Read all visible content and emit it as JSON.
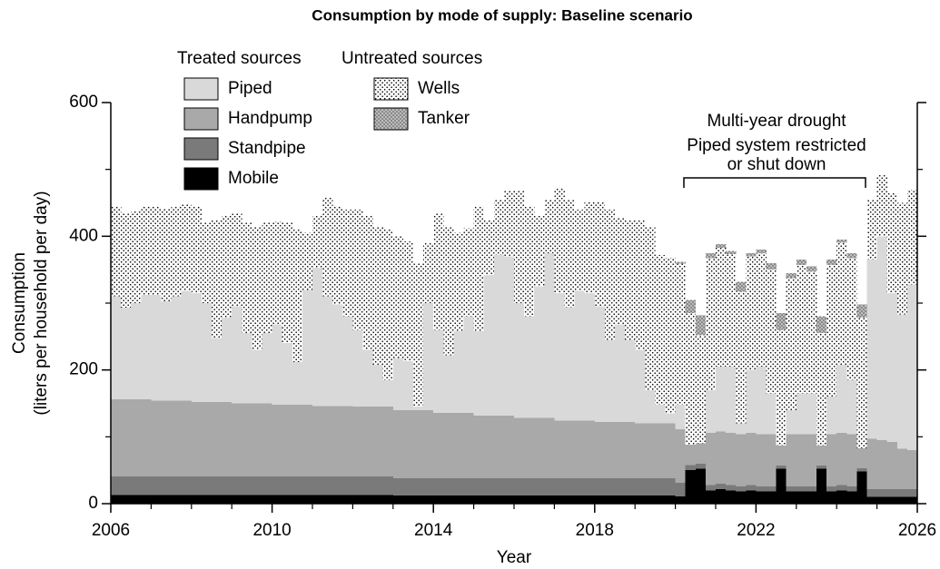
{
  "chart_data": {
    "type": "stacked-step-area",
    "title": "Consumption by mode of supply: Baseline scenario",
    "xlabel": "Year",
    "ylabel": [
      "Consumption",
      "(liters per household per day)"
    ],
    "legend_groups": [
      "Treated sources",
      "Untreated sources"
    ],
    "annotation": [
      "Multi-year drought",
      "Piped system restricted",
      "or shut down"
    ],
    "xlim": [
      2006,
      2026
    ],
    "xticks": [
      2006,
      2010,
      2014,
      2018,
      2022,
      2026
    ],
    "xticks_minor": [
      2007,
      2008,
      2009,
      2011,
      2012,
      2013,
      2015,
      2016,
      2017,
      2019,
      2020,
      2021,
      2023,
      2024,
      2025
    ],
    "ylim": [
      0,
      600
    ],
    "yticks": [
      0,
      200,
      400,
      600
    ],
    "yticks_minor": [
      100,
      300,
      500
    ],
    "x": [
      2006,
      2006.25,
      2006.5,
      2006.75,
      2007,
      2007.25,
      2007.5,
      2007.75,
      2008,
      2008.25,
      2008.5,
      2008.75,
      2009,
      2009.25,
      2009.5,
      2009.75,
      2010,
      2010.25,
      2010.5,
      2010.75,
      2011,
      2011.25,
      2011.5,
      2011.75,
      2012,
      2012.25,
      2012.5,
      2012.75,
      2013,
      2013.25,
      2013.5,
      2013.75,
      2014,
      2014.25,
      2014.5,
      2014.75,
      2015,
      2015.25,
      2015.5,
      2015.75,
      2016,
      2016.25,
      2016.5,
      2016.75,
      2017,
      2017.25,
      2017.5,
      2017.75,
      2018,
      2018.25,
      2018.5,
      2018.75,
      2019,
      2019.25,
      2019.5,
      2019.75,
      2020,
      2020.25,
      2020.5,
      2020.75,
      2021,
      2021.25,
      2021.5,
      2021.75,
      2022,
      2022.25,
      2022.5,
      2022.75,
      2023,
      2023.25,
      2023.5,
      2023.75,
      2024,
      2024.25,
      2024.5,
      2024.75,
      2025,
      2025.25,
      2025.5,
      2025.75
    ],
    "series": [
      {
        "name": "Mobile",
        "group": 0,
        "color": "#000000",
        "values": [
          13,
          13,
          13,
          13,
          13,
          13,
          13,
          13,
          13,
          13,
          13,
          13,
          13,
          13,
          13,
          13,
          13,
          13,
          13,
          13,
          13,
          13,
          13,
          13,
          13,
          13,
          13,
          13,
          12,
          12,
          12,
          12,
          12,
          12,
          12,
          12,
          12,
          12,
          12,
          12,
          12,
          12,
          12,
          12,
          12,
          12,
          12,
          12,
          12,
          12,
          12,
          12,
          12,
          12,
          12,
          12,
          11,
          50,
          52,
          20,
          22,
          20,
          18,
          20,
          18,
          18,
          52,
          18,
          18,
          18,
          52,
          18,
          20,
          18,
          48,
          10,
          10,
          10,
          10,
          10
        ]
      },
      {
        "name": "Standpipe",
        "group": 0,
        "color": "#7a7a7a",
        "values": [
          28,
          28,
          28,
          28,
          28,
          28,
          28,
          28,
          28,
          28,
          28,
          28,
          28,
          28,
          28,
          28,
          28,
          28,
          28,
          28,
          28,
          28,
          28,
          28,
          28,
          28,
          28,
          28,
          26,
          26,
          26,
          26,
          26,
          26,
          26,
          26,
          26,
          26,
          26,
          26,
          26,
          26,
          26,
          26,
          26,
          26,
          26,
          26,
          26,
          26,
          26,
          26,
          26,
          26,
          26,
          26,
          20,
          8,
          8,
          8,
          8,
          8,
          8,
          8,
          8,
          8,
          5,
          8,
          8,
          8,
          5,
          8,
          8,
          8,
          5,
          12,
          12,
          12,
          12,
          12
        ]
      },
      {
        "name": "Handpump",
        "group": 0,
        "color": "#a9a9a9",
        "values": [
          115,
          115,
          115,
          115,
          113,
          113,
          113,
          113,
          111,
          111,
          111,
          111,
          109,
          109,
          109,
          109,
          107,
          107,
          107,
          107,
          105,
          105,
          105,
          105,
          104,
          104,
          104,
          104,
          102,
          102,
          102,
          102,
          98,
          98,
          98,
          98,
          94,
          94,
          94,
          94,
          90,
          90,
          90,
          90,
          86,
          86,
          86,
          86,
          84,
          84,
          84,
          84,
          82,
          82,
          82,
          82,
          80,
          30,
          30,
          78,
          78,
          78,
          78,
          78,
          78,
          78,
          30,
          78,
          78,
          78,
          30,
          78,
          78,
          78,
          30,
          75,
          73,
          70,
          60,
          58
        ]
      },
      {
        "name": "Piped",
        "group": 0,
        "color": "#d9d9d9",
        "values": [
          154,
          137,
          144,
          156,
          158,
          149,
          156,
          164,
          163,
          148,
          96,
          126,
          145,
          105,
          80,
          105,
          120,
          92,
          64,
          172,
          207,
          164,
          152,
          134,
          115,
          85,
          63,
          40,
          78,
          73,
          5,
          160,
          124,
          86,
          122,
          144,
          126,
          210,
          240,
          238,
          172,
          152,
          197,
          247,
          191,
          170,
          194,
          191,
          173,
          123,
          146,
          123,
          110,
          50,
          28,
          15,
          37,
          0,
          0,
          64,
          97,
          99,
          16,
          94,
          101,
          61,
          0,
          36,
          61,
          61,
          0,
          56,
          102,
          81,
          0,
          268,
          305,
          223,
          201,
          248
        ]
      },
      {
        "name": "Wells",
        "group": 1,
        "color": "#ffffff",
        "pattern": "dots",
        "values": [
          135,
          142,
          137,
          133,
          133,
          139,
          135,
          130,
          130,
          120,
          177,
          152,
          140,
          165,
          185,
          165,
          154,
          180,
          198,
          85,
          77,
          148,
          147,
          160,
          180,
          202,
          207,
          225,
          182,
          179,
          215,
          90,
          175,
          193,
          147,
          132,
          187,
          83,
          83,
          98,
          168,
          165,
          105,
          80,
          157,
          161,
          122,
          137,
          157,
          195,
          160,
          180,
          195,
          245,
          224,
          233,
          211,
          197,
          162,
          197,
          178,
          168,
          197,
          170,
          170,
          185,
          173,
          197,
          192,
          182,
          168,
          197,
          182,
          182,
          195,
          90,
          92,
          150,
          167,
          142
        ]
      },
      {
        "name": "Tanker",
        "group": 1,
        "color": "#8a8a8a",
        "pattern": "dots",
        "values": [
          0,
          0,
          0,
          0,
          0,
          0,
          0,
          0,
          0,
          0,
          0,
          0,
          0,
          0,
          0,
          0,
          0,
          0,
          0,
          0,
          0,
          0,
          0,
          0,
          0,
          0,
          0,
          0,
          0,
          0,
          0,
          0,
          0,
          0,
          0,
          0,
          0,
          0,
          0,
          0,
          0,
          0,
          0,
          0,
          0,
          0,
          0,
          0,
          0,
          0,
          0,
          0,
          0,
          0,
          0,
          0,
          3,
          20,
          30,
          8,
          5,
          5,
          15,
          5,
          5,
          10,
          25,
          8,
          8,
          8,
          25,
          8,
          5,
          8,
          20,
          0,
          0,
          0,
          0,
          0
        ]
      }
    ]
  }
}
